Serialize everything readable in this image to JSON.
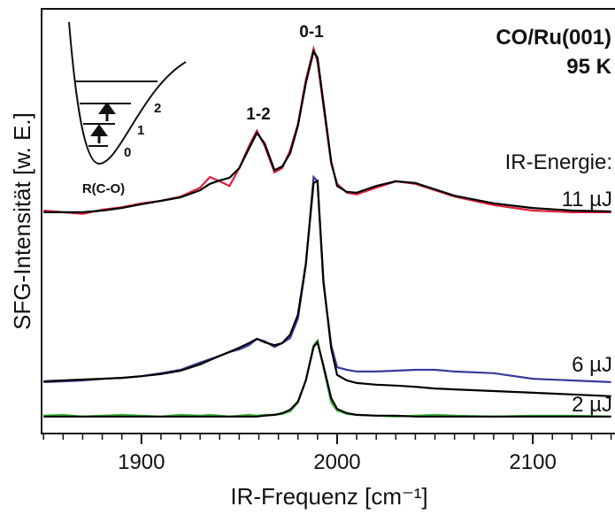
{
  "chart_data": {
    "type": "line",
    "xlabel": "IR-Frequenz [cm⁻¹]",
    "ylabel": "SFG-Intensität [w. E.]",
    "annotations": {
      "system": "CO/Ru(001)",
      "temperature": "95 K",
      "energy_heading": "IR-Energie:",
      "peak_01": "0-1",
      "peak_12": "1-2",
      "inset_axis": "R(C-O)",
      "level_0": "0",
      "level_1": "1",
      "level_2": "2"
    },
    "xlim": [
      1849,
      2142
    ],
    "ylim": [
      0,
      100
    ],
    "xticks": [
      1900,
      2000,
      2100
    ],
    "xminorticks": [
      1850,
      1860,
      1870,
      1880,
      1890,
      1910,
      1920,
      1930,
      1940,
      1950,
      1960,
      1970,
      1980,
      1990,
      2010,
      2020,
      2030,
      2040,
      2050,
      2060,
      2070,
      2080,
      2090,
      2110,
      2120,
      2130,
      2140
    ],
    "x": [
      1850,
      1860,
      1870,
      1880,
      1890,
      1900,
      1910,
      1920,
      1930,
      1935,
      1940,
      1945,
      1950,
      1955,
      1959,
      1963,
      1968,
      1972,
      1976,
      1980,
      1984,
      1988,
      1990,
      1993,
      1997,
      2000,
      2005,
      2010,
      2020,
      2030,
      2040,
      2050,
      2060,
      2080,
      2100,
      2120,
      2140
    ],
    "series": [
      {
        "name": "11 µJ",
        "color": "#e0203a",
        "values": [
          52.5,
          52.1,
          51.7,
          52.7,
          53.3,
          54.2,
          54.8,
          55.8,
          57.9,
          60.4,
          59.4,
          58.3,
          62.5,
          67.7,
          71.3,
          67.7,
          61.5,
          62.5,
          66.7,
          72.9,
          83.3,
          90.6,
          87.5,
          77.1,
          63.5,
          58.8,
          56.7,
          56.3,
          57.9,
          59.4,
          58.8,
          57.3,
          55.8,
          53.8,
          52.5,
          52.1,
          52.1
        ]
      },
      {
        "color": "#000000",
        "values": [
          52.1,
          52.1,
          52.1,
          52.5,
          53.1,
          54.0,
          54.8,
          55.6,
          57.3,
          58.8,
          59.6,
          60.2,
          62.5,
          67.1,
          70.8,
          68.3,
          62.0,
          62.9,
          66.0,
          72.5,
          82.5,
          90.0,
          88.5,
          78.0,
          64.0,
          58.3,
          56.9,
          56.7,
          58.3,
          59.4,
          59.0,
          57.5,
          56.0,
          54.2,
          53.1,
          52.5,
          52.3
        ]
      },
      {
        "name": "6 µJ",
        "color": "#3a3a9a",
        "values": [
          12.1,
          12.3,
          12.5,
          12.9,
          13.1,
          13.5,
          14.2,
          15.0,
          16.7,
          17.5,
          18.3,
          19.2,
          19.8,
          20.8,
          22.3,
          21.7,
          20.4,
          21.3,
          22.5,
          27.1,
          39.6,
          60.4,
          59.4,
          35.4,
          20.8,
          15.6,
          15.0,
          14.6,
          14.6,
          14.8,
          15.0,
          15.0,
          14.6,
          14.2,
          12.9,
          12.5,
          12.1
        ]
      },
      {
        "color": "#000000",
        "values": [
          12.3,
          12.5,
          12.7,
          12.9,
          13.1,
          13.5,
          14.0,
          14.8,
          16.3,
          17.3,
          18.3,
          19.2,
          20.2,
          21.3,
          22.3,
          21.5,
          20.8,
          21.3,
          23.3,
          28.0,
          40.0,
          59.0,
          59.5,
          36.0,
          20.0,
          13.8,
          12.5,
          11.9,
          11.5,
          11.3,
          11.0,
          10.6,
          10.4,
          10.0,
          9.6,
          9.2,
          8.8
        ]
      },
      {
        "name": "2 µJ",
        "color": "#3cb83c",
        "values": [
          4.2,
          4.4,
          4.0,
          4.2,
          4.4,
          4.2,
          4.0,
          4.4,
          4.2,
          4.4,
          4.2,
          4.0,
          4.2,
          4.4,
          4.2,
          4.4,
          4.4,
          4.6,
          5.2,
          7.3,
          12.5,
          20.8,
          21.9,
          15.6,
          7.3,
          5.4,
          4.6,
          4.4,
          4.2,
          4.0,
          4.2,
          4.4,
          4.2,
          4.0,
          4.2,
          4.2,
          4.0
        ]
      },
      {
        "color": "#000000",
        "values": [
          4.0,
          4.0,
          4.0,
          4.0,
          4.0,
          4.0,
          4.0,
          4.0,
          4.0,
          4.0,
          4.0,
          4.0,
          4.0,
          4.0,
          4.0,
          4.2,
          4.4,
          4.8,
          5.6,
          7.5,
          12.5,
          20.4,
          21.5,
          16.0,
          8.3,
          5.8,
          4.8,
          4.4,
          4.2,
          4.2,
          4.0,
          4.0,
          4.0,
          4.0,
          4.0,
          4.0,
          4.0
        ]
      }
    ]
  }
}
